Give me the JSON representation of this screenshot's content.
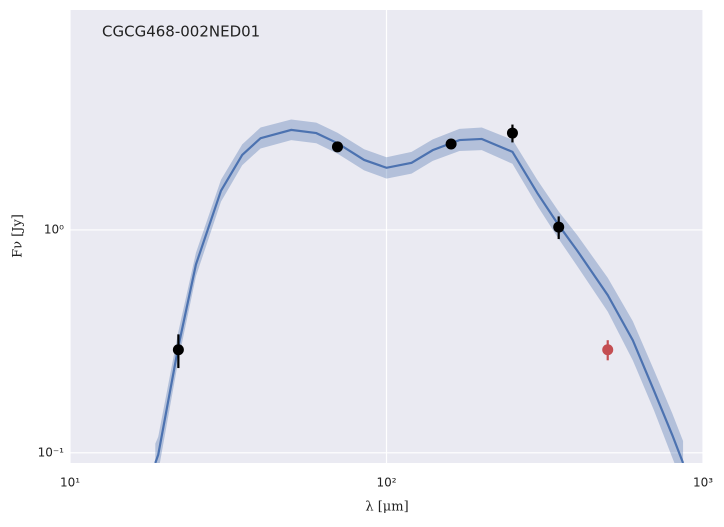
{
  "chart_data": {
    "type": "line",
    "annotation": "CGCG468-002NED01",
    "xlabel": "λ [μm]",
    "ylabel": "Fν [Jy]",
    "xscale": "log",
    "yscale": "log",
    "xlim": [
      10,
      1000
    ],
    "ylim": [
      0.09,
      9.7
    ],
    "xticks": [
      {
        "value": 10,
        "label": "10¹"
      },
      {
        "value": 100,
        "label": "10²"
      },
      {
        "value": 1000,
        "label": "10³"
      }
    ],
    "yticks": [
      {
        "value": 0.1,
        "label": "10⁻¹"
      },
      {
        "value": 1,
        "label": "10⁰"
      }
    ],
    "grid": true,
    "background": "#eaeaf2",
    "series": [
      {
        "type": "line",
        "color": "#4c72b0",
        "band_opacity": 0.35,
        "x": [
          18.6,
          19,
          22,
          25,
          30,
          35,
          40,
          50,
          60,
          70,
          85,
          100,
          120,
          140,
          170,
          200,
          250,
          300,
          350,
          400,
          500,
          600,
          700,
          800,
          865
        ],
        "values": [
          0.09,
          0.098,
          0.3,
          0.7,
          1.5,
          2.17,
          2.58,
          2.81,
          2.72,
          2.45,
          2.06,
          1.9,
          2.0,
          2.28,
          2.53,
          2.56,
          2.24,
          1.46,
          1.05,
          0.81,
          0.51,
          0.32,
          0.19,
          0.12,
          0.09
        ],
        "lower": [
          0.075,
          0.082,
          0.26,
          0.62,
          1.34,
          1.95,
          2.32,
          2.53,
          2.45,
          2.2,
          1.85,
          1.7,
          1.79,
          2.04,
          2.26,
          2.28,
          1.98,
          1.28,
          0.91,
          0.69,
          0.43,
          0.26,
          0.155,
          0.095,
          0.072
        ],
        "upper": [
          0.11,
          0.118,
          0.35,
          0.79,
          1.68,
          2.42,
          2.88,
          3.13,
          3.03,
          2.73,
          2.3,
          2.12,
          2.24,
          2.55,
          2.84,
          2.88,
          2.54,
          1.67,
          1.21,
          0.95,
          0.61,
          0.39,
          0.235,
          0.15,
          0.113
        ]
      },
      {
        "type": "scatter",
        "color": "#000000",
        "x": [
          22,
          70,
          160,
          250,
          350
        ],
        "values": [
          0.29,
          2.36,
          2.43,
          2.72,
          1.03
        ],
        "errors": [
          0.05,
          0.08,
          0.08,
          0.25,
          0.12
        ]
      },
      {
        "type": "scatter",
        "color": "#c44e52",
        "x": [
          500
        ],
        "values": [
          0.29
        ],
        "errors": [
          0.03
        ]
      }
    ]
  }
}
